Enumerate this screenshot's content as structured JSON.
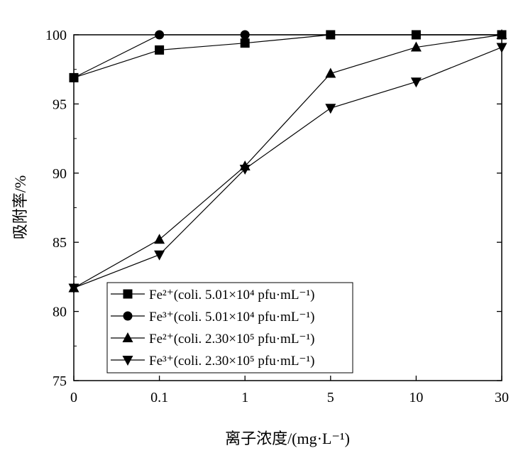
{
  "chart_data": {
    "type": "line",
    "categories": [
      "0",
      "0.1",
      "1",
      "5",
      "10",
      "30"
    ],
    "xlabel": "离子浓度/(mg·L⁻¹)",
    "ylabel": "吸附率/%",
    "ylim": [
      75,
      100
    ],
    "yticks": [
      "75",
      "80",
      "85",
      "90",
      "95",
      "100"
    ],
    "grid": false,
    "legend_position": "lower-left",
    "series": [
      {
        "name": "Fe²⁺(coli. 5.01×10⁴ pfu·mL⁻¹)",
        "marker": "square",
        "values": [
          96.9,
          98.9,
          99.4,
          100.0,
          100.0,
          100.0
        ]
      },
      {
        "name": "Fe³⁺(coli. 5.01×10⁴ pfu·mL⁻¹)",
        "marker": "circle",
        "values": [
          96.9,
          100.0,
          100.0,
          100.0,
          100.0,
          100.0
        ]
      },
      {
        "name": "Fe²⁺(coli. 2.30×10⁵ pfu·mL⁻¹)",
        "marker": "triangle-up",
        "values": [
          81.7,
          85.2,
          90.5,
          97.2,
          99.1,
          100.0
        ]
      },
      {
        "name": "Fe³⁺(coli. 2.30×10⁵ pfu·mL⁻¹)",
        "marker": "triangle-down",
        "values": [
          81.7,
          84.1,
          90.3,
          94.7,
          96.6,
          99.1
        ]
      }
    ]
  }
}
